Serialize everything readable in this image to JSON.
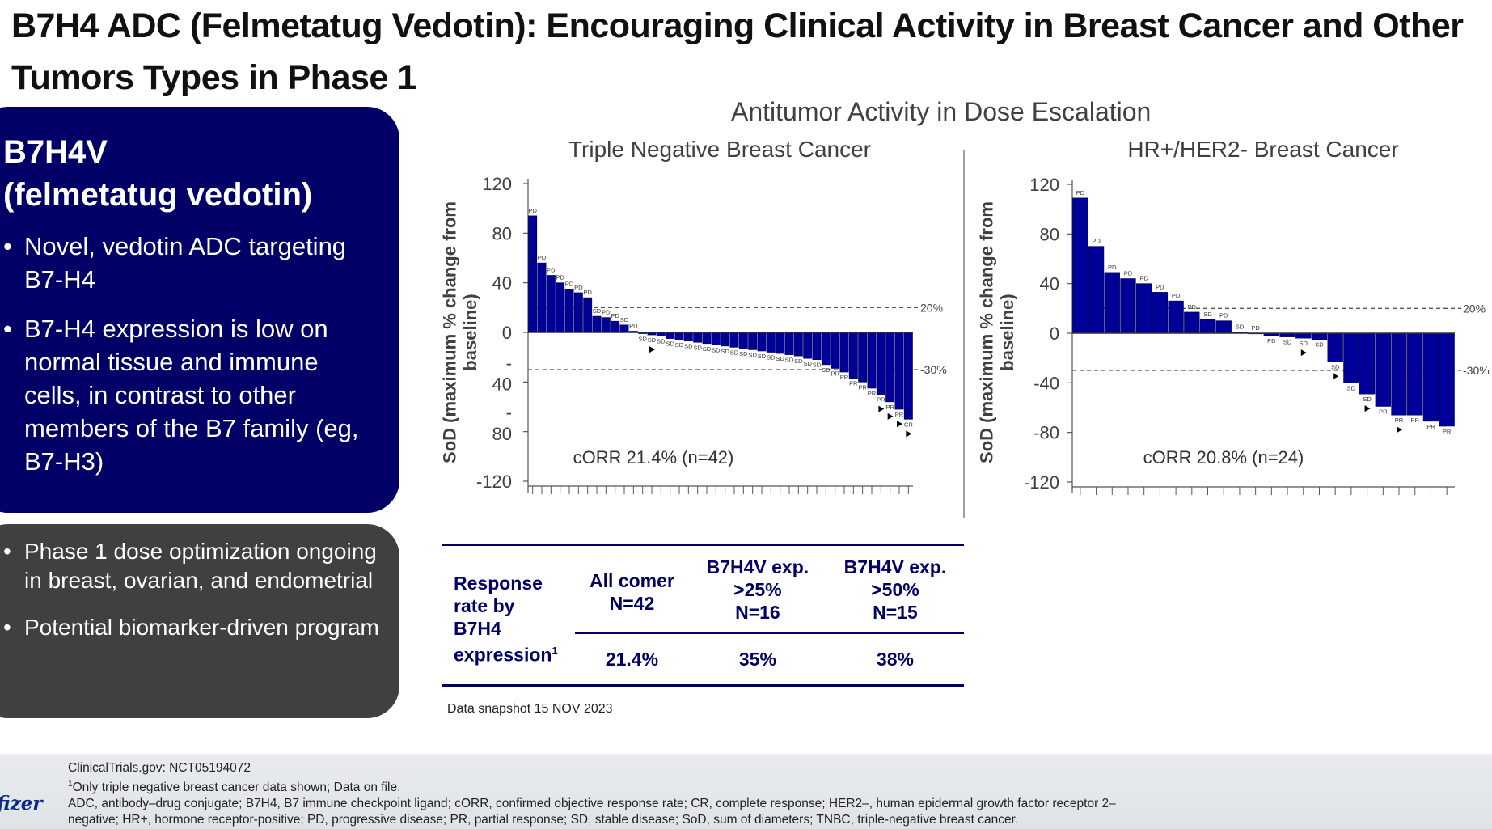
{
  "slide": {
    "title": "B7H4 ADC (Felmetatug Vedotin): Encouraging Clinical Activity in Breast Cancer and Other Tumors Types in Phase 1",
    "drug_box": {
      "heading_line1": "B7H4V",
      "heading_line2": "(felmetatug vedotin)",
      "bullets": [
        "Novel, vedotin ADC targeting B7-H4",
        "B7-H4 expression is low on normal tissue and immune cells, in contrast to other members of the B7 family (eg, B7-H3)"
      ]
    },
    "program_box": {
      "bullets": [
        "Phase 1 dose optimization ongoing in breast, ovarian, and endometrial",
        "Potential biomarker-driven program"
      ]
    },
    "section_title": "Antitumor Activity in Dose Escalation",
    "response_table": {
      "row_header": [
        "Response",
        "rate by",
        "B7H4",
        "expression"
      ],
      "row_header_sup": "1",
      "columns": [
        {
          "h1": "All comer",
          "h2": "N=42",
          "h3": "",
          "value": "21.4%"
        },
        {
          "h1": "B7H4V exp.",
          "h2": ">25%",
          "h3": "N=16",
          "value": "35%"
        },
        {
          "h1": "B7H4V exp.",
          "h2": ">50%",
          "h3": "N=15",
          "value": "38%"
        }
      ]
    },
    "snapshot": "Data snapshot 15 NOV 2023",
    "footer": {
      "line1": "ClinicalTrials.gov: NCT05194072",
      "line2_sup": "1",
      "line2": "Only triple negative breast cancer data shown; Data on file.",
      "line3": "ADC, antibody–drug conjugate; B7H4, B7 immune checkpoint ligand; cORR, confirmed objective response rate; CR, complete response; HER2–, human epidermal growth factor receptor 2–",
      "line4": "negative; HR+, hormone receptor-positive;  PD, progressive disease; PR, partial response; SD, stable disease; SoD, sum of diameters; TNBC, triple-negative breast cancer.",
      "logo": "fizer"
    },
    "colors": {
      "navy": "#000066",
      "dark_gray": "#404040",
      "bar": "#000099"
    }
  },
  "chart_data": [
    {
      "type": "bar",
      "title": "Triple Negative Breast Cancer",
      "ylabel_line1": "SoD (maximum % change from",
      "ylabel_line2": "baseline)",
      "ytick_labels": [
        "120",
        "80",
        "40",
        "0",
        "-\n40",
        "-\n80",
        "-120"
      ],
      "ytick_values": [
        120,
        80,
        40,
        0,
        -40,
        -80,
        -120
      ],
      "ylim": [
        -120,
        120
      ],
      "reference_lines": [
        {
          "value": 20,
          "label": "20%"
        },
        {
          "value": -30,
          "label": "-30%"
        }
      ],
      "annotation": "cORR 21.4% (n=42)",
      "values": [
        94,
        56,
        46,
        40,
        35,
        32,
        28,
        13,
        12,
        9,
        6,
        1,
        -1,
        -2,
        -3,
        -5,
        -6,
        -7,
        -8,
        -9,
        -10,
        -11,
        -12,
        -13,
        -14,
        -15,
        -16,
        -17,
        -18,
        -19,
        -21,
        -22,
        -26,
        -29,
        -32,
        -37,
        -40,
        -45,
        -50,
        -56,
        -62,
        -70
      ],
      "labels": [
        "PD",
        "PD",
        "PD",
        "PD",
        "PD",
        "PD",
        "PD",
        "SD",
        "PD",
        "PD",
        "SD",
        "PD",
        "SD",
        "SD",
        "SD",
        "SD",
        "SD",
        "SD",
        "SD",
        "SD",
        "SD",
        "SD",
        "SD",
        "SD",
        "SD",
        "SD",
        "SD",
        "SD",
        "SD",
        "SD",
        "SD",
        "SD",
        "SD",
        "PR",
        "PR",
        "PR",
        "PR",
        "PR",
        "PR",
        "PR",
        "PR",
        "CR"
      ],
      "arrows": [
        13,
        38,
        39,
        40,
        41
      ]
    },
    {
      "type": "bar",
      "title": "HR+/HER2- Breast Cancer",
      "ylabel_line1": "SoD (maximum % change from",
      "ylabel_line2": "baseline)",
      "ytick_labels": [
        "120",
        "80",
        "40",
        "0",
        "-40",
        "-80",
        "-120"
      ],
      "ytick_values": [
        120,
        80,
        40,
        0,
        -40,
        -80,
        -120
      ],
      "ylim": [
        -120,
        120
      ],
      "reference_lines": [
        {
          "value": 20,
          "label": "20%"
        },
        {
          "value": -30,
          "label": "-30%"
        }
      ],
      "annotation": "cORR 20.8% (n=24)",
      "values": [
        109,
        70,
        49,
        44,
        40,
        33,
        26,
        17,
        11,
        10,
        1,
        0,
        -2,
        -3,
        -4,
        -5,
        -23,
        -40,
        -49,
        -59,
        -66,
        -66,
        -71,
        -75
      ],
      "labels": [
        "PD",
        "PD",
        "PD",
        "PD",
        "PD",
        "PD",
        "PD",
        "PD",
        "SD",
        "PD",
        "SD",
        "PD",
        "PD",
        "SD",
        "SD",
        "SD",
        "SD",
        "SD",
        "SD",
        "PR",
        "PR",
        "PR",
        "PR",
        "PR"
      ],
      "arrows": [
        14,
        16,
        18,
        20
      ]
    }
  ]
}
